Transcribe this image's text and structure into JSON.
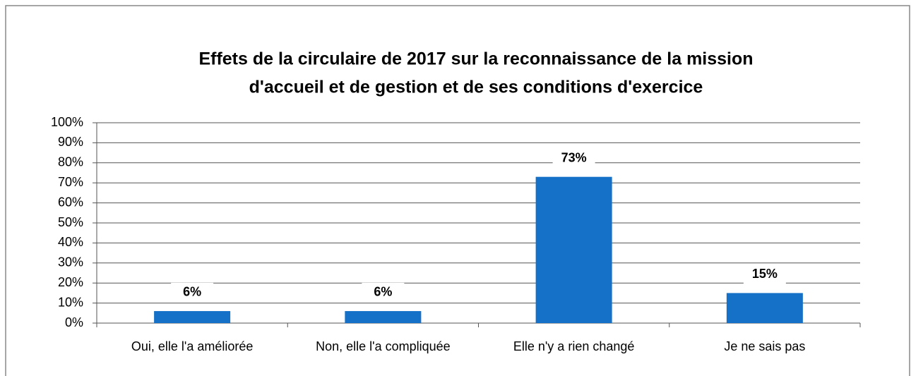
{
  "chart_data": {
    "type": "bar",
    "title": [
      "Effets de la circulaire de 2017 sur la reconnaissance de la mission",
      "d'accueil et de gestion et de ses conditions d'exercice"
    ],
    "categories": [
      "Oui, elle l'a améliorée",
      "Non, elle l'a compliquée",
      "Elle n'y a rien changé",
      "Je ne sais pas"
    ],
    "values": [
      6,
      6,
      73,
      15
    ],
    "value_labels": [
      "6%",
      "6%",
      "73%",
      "15%"
    ],
    "color": "#1570c8",
    "ylim": [
      0,
      100
    ],
    "yticks": [
      {
        "value": 0,
        "label": "0%"
      },
      {
        "value": 10,
        "label": "10%"
      },
      {
        "value": 20,
        "label": "20%"
      },
      {
        "value": 30,
        "label": "30%"
      },
      {
        "value": 40,
        "label": "40%"
      },
      {
        "value": 50,
        "label": "50%"
      },
      {
        "value": 60,
        "label": "60%"
      },
      {
        "value": 70,
        "label": "70%"
      },
      {
        "value": 80,
        "label": "80%"
      },
      {
        "value": 90,
        "label": "90%"
      },
      {
        "value": 100,
        "label": "100%"
      }
    ],
    "grid": true
  }
}
